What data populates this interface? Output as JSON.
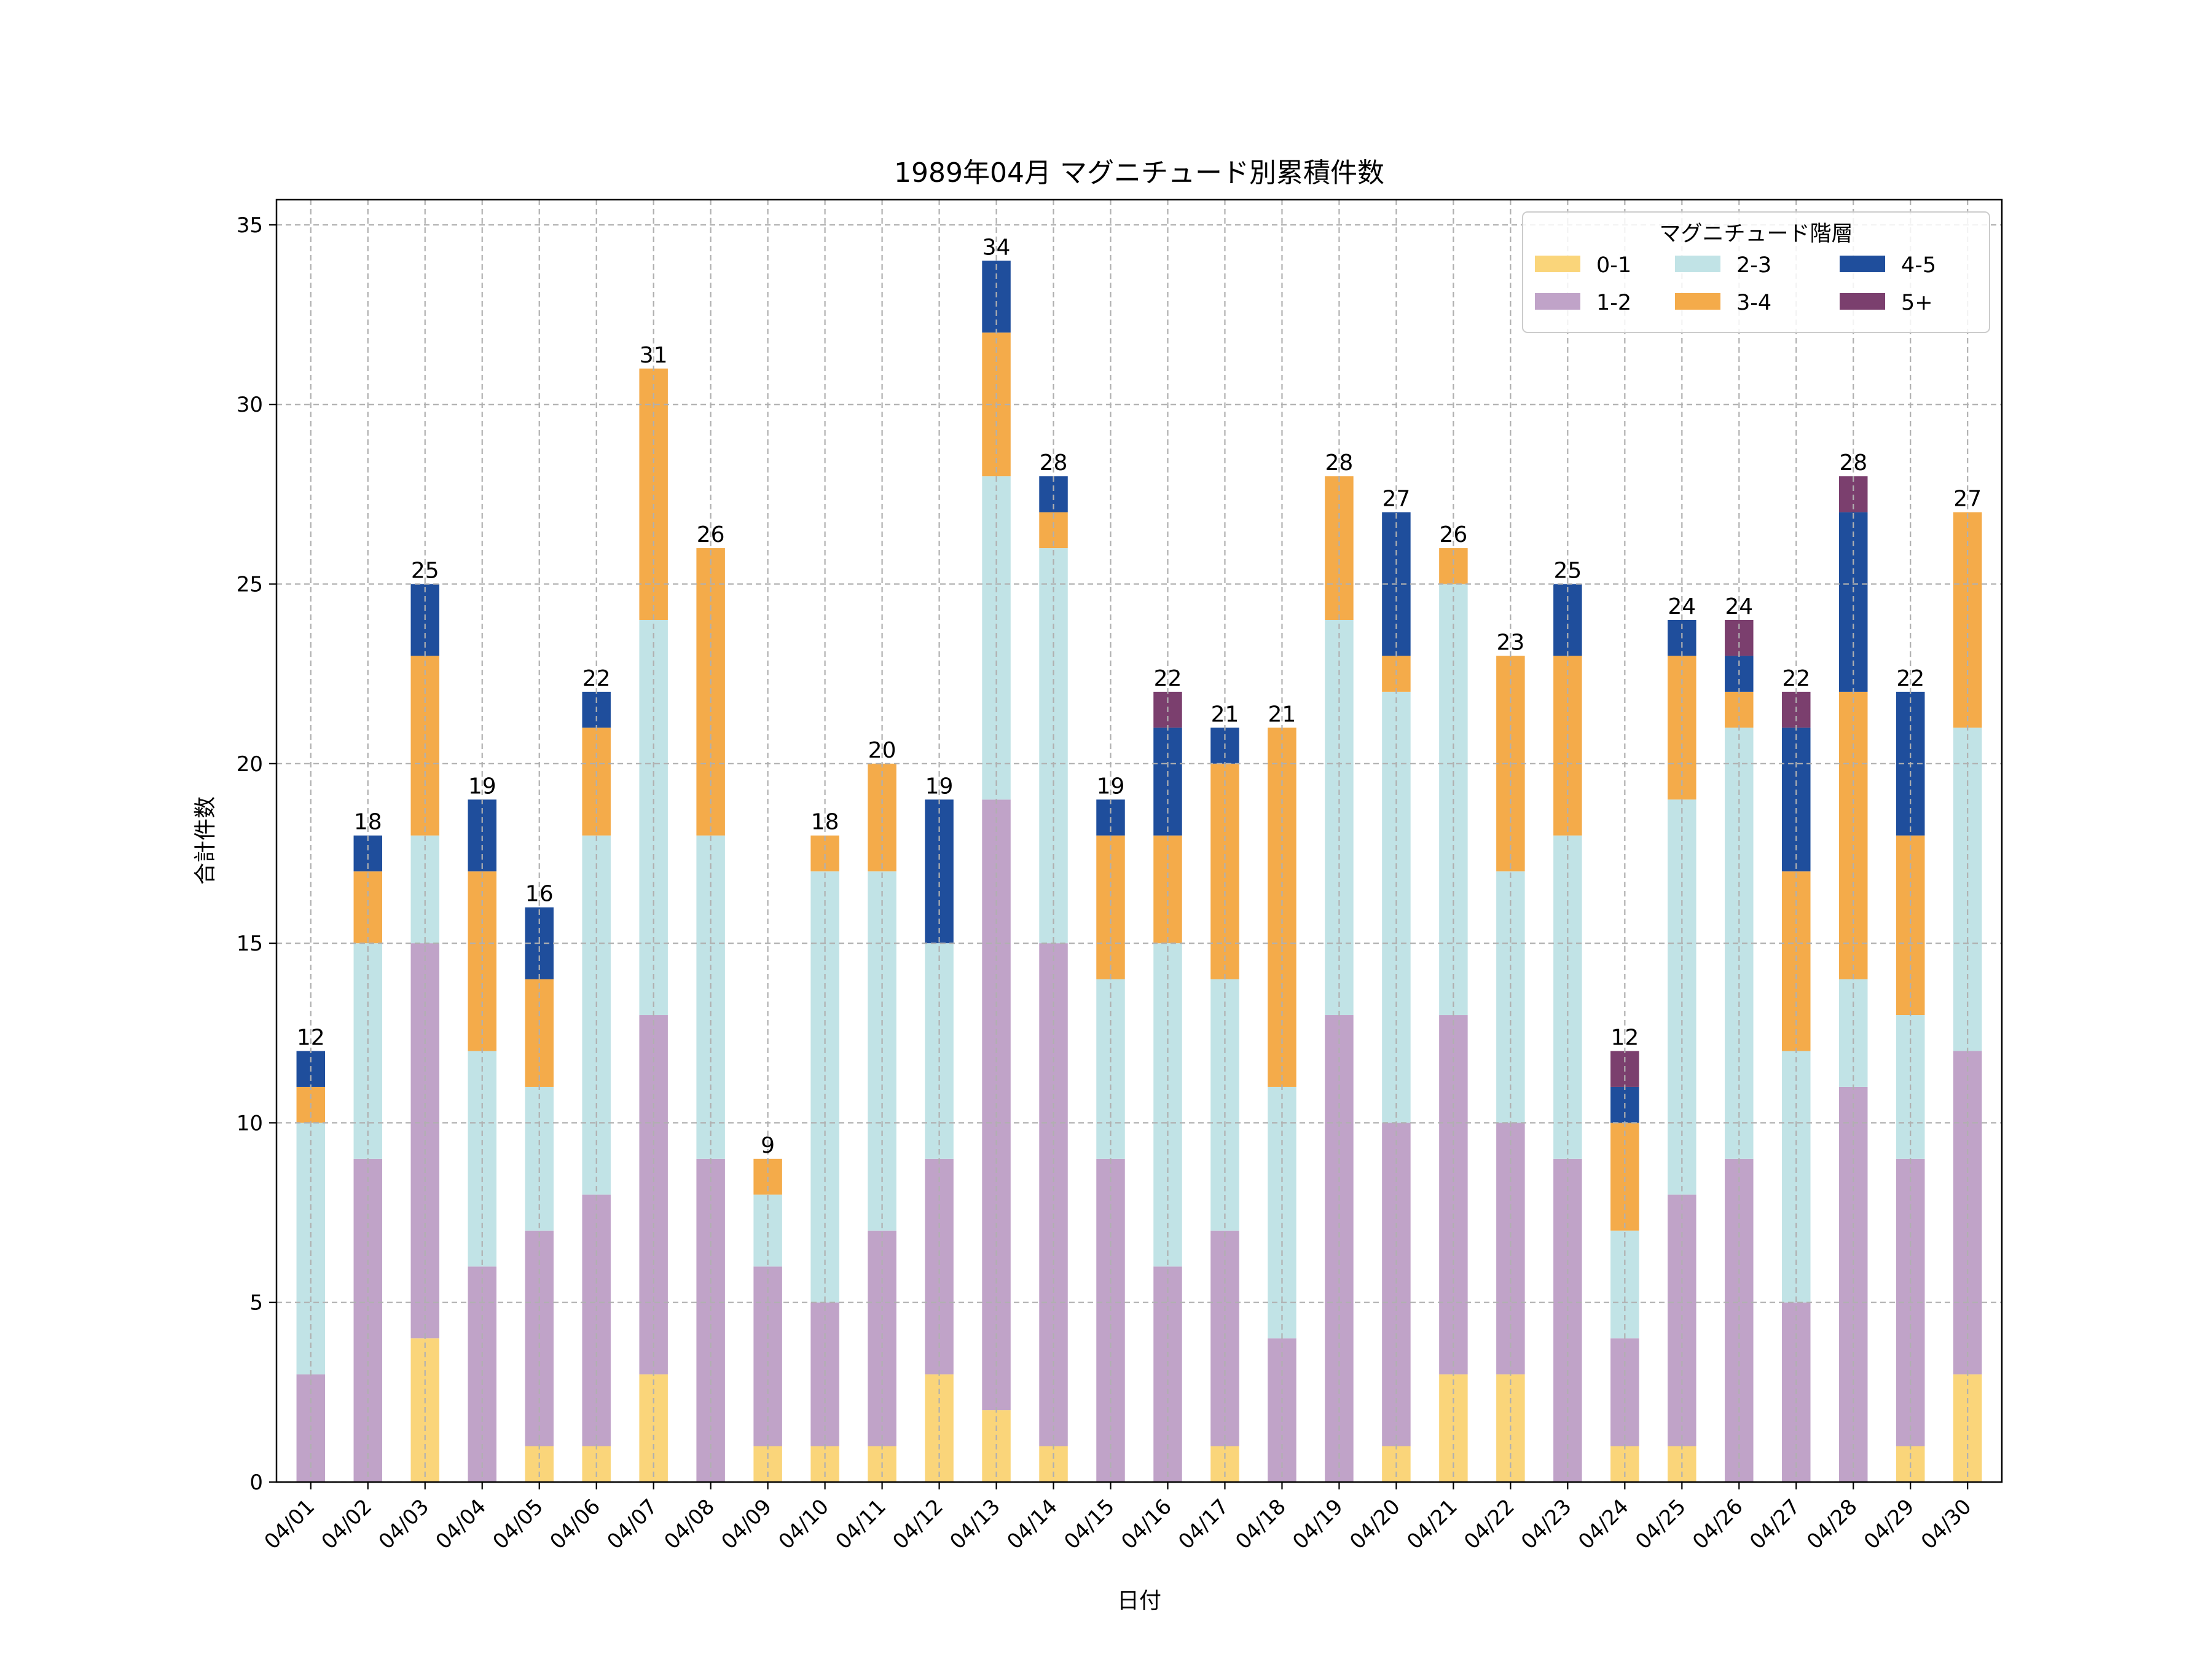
{
  "chart_data": {
    "type": "bar",
    "stacked": true,
    "title": "1989年04月 マグニチュード別累積件数",
    "xlabel": "日付",
    "ylabel": "合計件数",
    "ylim": [
      0,
      35.7
    ],
    "yticks": [
      0,
      5,
      10,
      15,
      20,
      25,
      30,
      35
    ],
    "grid": true,
    "legend_title": "マグニチュード階層",
    "legend_position": "top-right",
    "categories": [
      "04/01",
      "04/02",
      "04/03",
      "04/04",
      "04/05",
      "04/06",
      "04/07",
      "04/08",
      "04/09",
      "04/10",
      "04/11",
      "04/12",
      "04/13",
      "04/14",
      "04/15",
      "04/16",
      "04/17",
      "04/18",
      "04/19",
      "04/20",
      "04/21",
      "04/22",
      "04/23",
      "04/24",
      "04/25",
      "04/26",
      "04/27",
      "04/28",
      "04/29",
      "04/30"
    ],
    "series": [
      {
        "name": "0-1",
        "color": "#fad57a",
        "values": [
          0,
          0,
          4,
          0,
          1,
          1,
          3,
          0,
          1,
          1,
          1,
          3,
          2,
          1,
          0,
          0,
          1,
          0,
          0,
          1,
          3,
          3,
          0,
          1,
          1,
          0,
          0,
          0,
          1,
          3
        ]
      },
      {
        "name": "1-2",
        "color": "#c0a3c8",
        "values": [
          3,
          9,
          11,
          6,
          6,
          7,
          10,
          9,
          5,
          4,
          6,
          6,
          17,
          14,
          9,
          6,
          6,
          4,
          13,
          9,
          10,
          7,
          9,
          3,
          7,
          9,
          5,
          11,
          8,
          9
        ]
      },
      {
        "name": "2-3",
        "color": "#c1e3e6",
        "values": [
          7,
          6,
          3,
          6,
          4,
          10,
          11,
          9,
          2,
          12,
          10,
          6,
          9,
          11,
          5,
          9,
          7,
          7,
          11,
          12,
          12,
          7,
          9,
          3,
          11,
          12,
          7,
          3,
          4,
          9
        ]
      },
      {
        "name": "3-4",
        "color": "#f4ab4a",
        "values": [
          1,
          2,
          5,
          5,
          3,
          3,
          7,
          8,
          1,
          1,
          3,
          0,
          4,
          1,
          4,
          3,
          6,
          10,
          4,
          1,
          1,
          6,
          5,
          3,
          4,
          1,
          5,
          8,
          5,
          6
        ]
      },
      {
        "name": "4-5",
        "color": "#1f4e9c",
        "values": [
          1,
          1,
          2,
          2,
          2,
          1,
          0,
          0,
          0,
          0,
          0,
          4,
          2,
          1,
          1,
          3,
          1,
          0,
          0,
          4,
          0,
          0,
          2,
          1,
          1,
          1,
          4,
          5,
          4,
          0
        ]
      },
      {
        "name": "5+",
        "color": "#7b3f6e",
        "values": [
          0,
          0,
          0,
          0,
          0,
          0,
          0,
          0,
          0,
          0,
          0,
          0,
          0,
          0,
          0,
          1,
          0,
          0,
          0,
          0,
          0,
          0,
          0,
          1,
          0,
          1,
          1,
          1,
          0,
          0
        ]
      }
    ],
    "totals": [
      12,
      18,
      25,
      19,
      16,
      22,
      31,
      26,
      9,
      18,
      20,
      19,
      34,
      28,
      19,
      22,
      21,
      21,
      28,
      27,
      26,
      23,
      25,
      12,
      24,
      24,
      22,
      28,
      22,
      27
    ]
  }
}
